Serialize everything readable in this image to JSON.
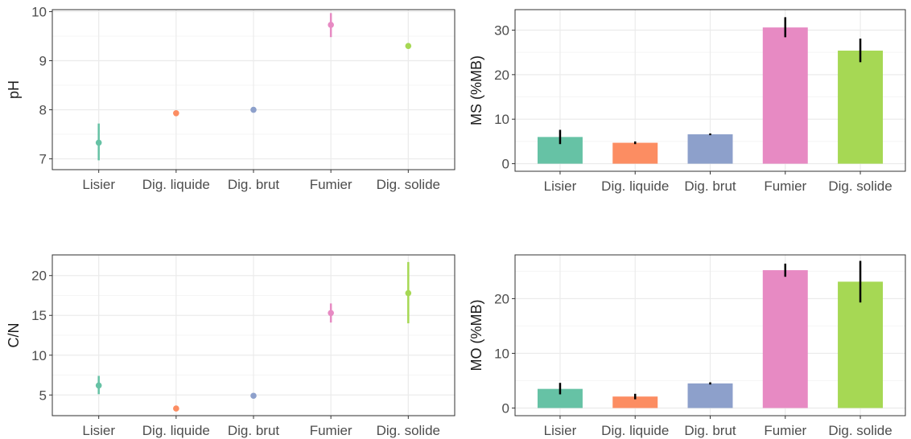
{
  "colors": {
    "Lisier": "#66c2a5",
    "Dig. liquide": "#fc8d62",
    "Dig. brut": "#8da0cb",
    "Fumier": "#e78ac3",
    "Dig. solide": "#a6d854",
    "errorbar_bars": "#000000",
    "grid_major": "#ebebeb",
    "grid_minor": "#f5f5f5",
    "panel_border": "#333333"
  },
  "chart_data": [
    {
      "id": "ph",
      "type": "scatter",
      "title": "",
      "xlabel": "",
      "ylabel": "pH",
      "categories": [
        "Lisier",
        "Dig. liquide",
        "Dig. brut",
        "Fumier",
        "Dig. solide"
      ],
      "values": [
        7.33,
        7.93,
        8.0,
        9.73,
        9.3
      ],
      "error_low": [
        6.97,
        7.89,
        7.97,
        9.48,
        9.27
      ],
      "error_high": [
        7.72,
        7.98,
        8.03,
        9.97,
        9.33
      ],
      "ylim": [
        6.78,
        10.04
      ],
      "yticks": [
        7,
        8,
        9,
        10
      ],
      "grid": true,
      "legend": "none"
    },
    {
      "id": "ms",
      "type": "bar",
      "title": "",
      "xlabel": "",
      "ylabel": "MS (%MB)",
      "categories": [
        "Lisier",
        "Dig. liquide",
        "Dig. brut",
        "Fumier",
        "Dig. solide"
      ],
      "values": [
        6.0,
        4.7,
        6.6,
        30.6,
        25.4
      ],
      "error_low": [
        4.4,
        4.4,
        6.4,
        28.4,
        22.8
      ],
      "error_high": [
        7.6,
        5.0,
        6.8,
        32.9,
        28.1
      ],
      "ylim": [
        -1.7,
        34.6
      ],
      "yticks": [
        0,
        10,
        20,
        30
      ],
      "grid": true,
      "legend": "none"
    },
    {
      "id": "cn",
      "type": "scatter",
      "title": "",
      "xlabel": "",
      "ylabel": "C/N",
      "categories": [
        "Lisier",
        "Dig. liquide",
        "Dig. brut",
        "Fumier",
        "Dig. solide"
      ],
      "values": [
        6.2,
        3.3,
        4.9,
        15.3,
        17.8
      ],
      "error_low": [
        5.1,
        3.2,
        4.8,
        14.1,
        14.0
      ],
      "error_high": [
        7.4,
        3.4,
        5.0,
        16.5,
        21.7
      ],
      "ylim": [
        2.4,
        22.6
      ],
      "yticks": [
        5,
        10,
        15,
        20
      ],
      "grid": true,
      "legend": "none"
    },
    {
      "id": "mo",
      "type": "bar",
      "title": "",
      "xlabel": "",
      "ylabel": "MO (%MB)",
      "categories": [
        "Lisier",
        "Dig. liquide",
        "Dig. brut",
        "Fumier",
        "Dig. solide"
      ],
      "values": [
        3.5,
        2.1,
        4.5,
        25.2,
        23.1
      ],
      "error_low": [
        2.5,
        1.6,
        4.3,
        24.0,
        19.3
      ],
      "error_high": [
        4.6,
        2.6,
        4.7,
        26.4,
        26.9
      ],
      "ylim": [
        -1.4,
        28.0
      ],
      "yticks": [
        0,
        10,
        20
      ],
      "grid": true,
      "legend": "none"
    }
  ]
}
